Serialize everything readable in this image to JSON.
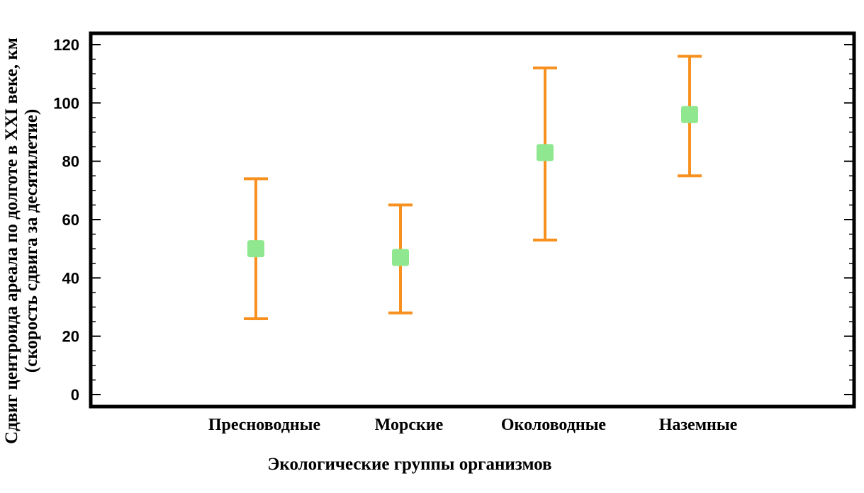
{
  "chart_data": {
    "type": "errorbar",
    "xlabel": "Экологические группы организмов",
    "ylabel_line1": "Сдвиг центроида ареала по долготе в XXI веке, км",
    "ylabel_line2": "(скорость сдвига за десятилетие)",
    "ylim": [
      -4,
      123
    ],
    "yticks": [
      "0",
      "20",
      "40",
      "60",
      "80",
      "100",
      "120"
    ],
    "grid": false,
    "categories": [
      "Пресноводные",
      "Морские",
      "Околоводные",
      "Наземные"
    ],
    "series": [
      {
        "mean": [
          50,
          47,
          83,
          96
        ],
        "lower": [
          26,
          28,
          53,
          75
        ],
        "upper": [
          74,
          65,
          112,
          116
        ]
      }
    ],
    "colors": {
      "errorbar": "#f7901e",
      "marker": "#8fe88f",
      "frame": "#000000"
    }
  }
}
